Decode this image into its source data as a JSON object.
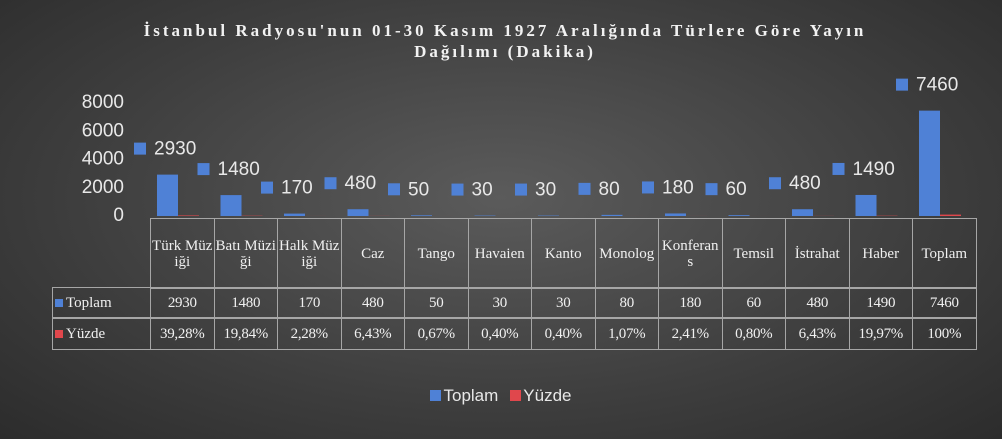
{
  "chart_data": {
    "type": "bar",
    "title": "İstanbul Radyosu'nun 01-30 Kasım 1927 Aralığında Türlere Göre Yayın Dağılımı (Dakika)",
    "categories": [
      "Türk Müziği",
      "Batı Müziği",
      "Halk Müziği",
      "Caz",
      "Tango",
      "Havaien",
      "Kanto",
      "Monolog",
      "Konferans",
      "Temsil",
      "İstrahat",
      "Haber",
      "Toplam"
    ],
    "series": [
      {
        "name": "Toplam",
        "color": "#4f81d6",
        "values": [
          2930,
          1480,
          170,
          480,
          50,
          30,
          30,
          80,
          180,
          60,
          480,
          1490,
          7460
        ]
      },
      {
        "name": "Yüzde",
        "color": "#e0474c",
        "values": [
          39.28,
          19.84,
          2.28,
          6.43,
          0.67,
          0.4,
          0.4,
          1.07,
          2.41,
          0.8,
          6.43,
          19.97,
          100
        ],
        "value_labels": [
          "39,28%",
          "19,84%",
          "2,28%",
          "6,43%",
          "0,67%",
          "0,40%",
          "0,40%",
          "1,07%",
          "2,41%",
          "0,80%",
          "6,43%",
          "19,97%",
          "100%"
        ]
      }
    ],
    "ylim": [
      0,
      8000
    ],
    "yticks": [
      0,
      2000,
      4000,
      6000,
      8000
    ],
    "legend": "bottom"
  }
}
